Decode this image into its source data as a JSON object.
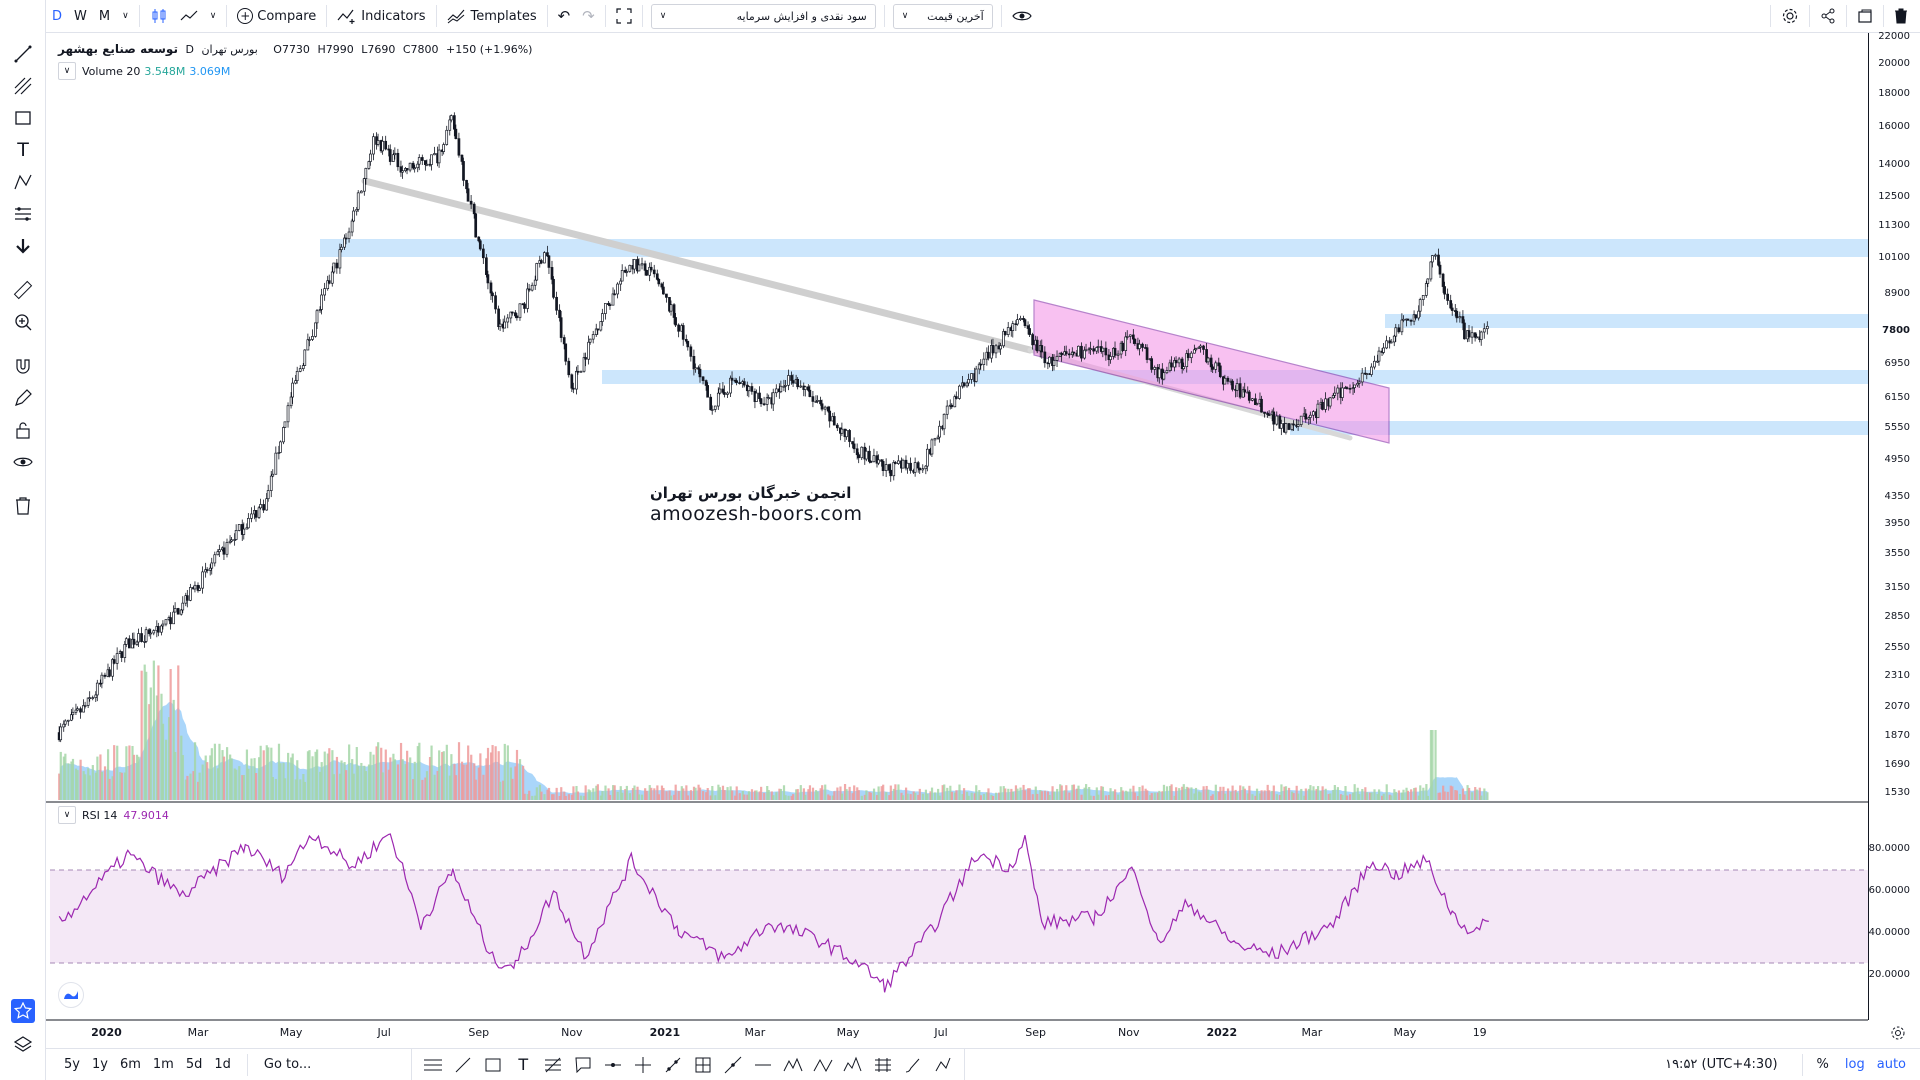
{
  "toolbar": {
    "intervals": [
      "D",
      "W",
      "M"
    ],
    "compare_label": "Compare",
    "indicators_label": "Indicators",
    "templates_label": "Templates",
    "select_strategy": "سود نقدی و افزایش سرمایه",
    "select_price": "آخرین قیمت"
  },
  "legend": {
    "symbol": "توسعه صنایع بهشهر",
    "exchange": "بورس تهران",
    "interval": "D",
    "open": "O7730",
    "high": "H7990",
    "low": "L7690",
    "close": "C7800",
    "change": "+150 (+1.96%)",
    "volume_label": "Volume 20",
    "volume_value1": "3.548M",
    "volume_value2": "3.069M",
    "rsi_label": "RSI 14",
    "rsi_value": "47.9014"
  },
  "watermark": {
    "line1": "انجمن خبرگان   بورس تهران",
    "line2": "amoozesh-boors.com"
  },
  "price_axis": [
    "22000",
    "20000",
    "18000",
    "16000",
    "14000",
    "12500",
    "11300",
    "10100",
    "8900",
    "7800",
    "6950",
    "6150",
    "5550",
    "4950",
    "4350",
    "3950",
    "3550",
    "3150",
    "2850",
    "2550",
    "2310",
    "2070",
    "1870",
    "1690",
    "1530"
  ],
  "rsi_axis": [
    "80.0000",
    "60.0000",
    "40.0000",
    "20.0000"
  ],
  "x_axis": [
    "2020",
    "Mar",
    "May",
    "Jul",
    "Sep",
    "Nov",
    "2021",
    "Mar",
    "May",
    "Jul",
    "Sep",
    "Nov",
    "2022",
    "Mar",
    "May",
    "19"
  ],
  "bottom": {
    "ranges": [
      "5y",
      "1y",
      "6m",
      "1m",
      "5d",
      "1d"
    ],
    "goto": "Go to...",
    "time": "۱۹:۵۲ (UTC+4:30)",
    "percent": "%",
    "log": "log",
    "auto": "auto"
  },
  "colors": {
    "accent": "#2962ff",
    "zone": "#bbdefb",
    "channel": "#f48fe6",
    "rsi_line": "#9c27b0",
    "rsi_band": "#f3e5f5",
    "vol_up": "#a5d6a7",
    "vol_down": "#ef9a9a",
    "vol_ma": "#64b5f6"
  },
  "chart_data": {
    "type": "candlestick",
    "scale": "log",
    "price_path": [
      [
        "2019-12-01",
        1900
      ],
      [
        "2019-12-20",
        2100
      ],
      [
        "2020-01-15",
        2600
      ],
      [
        "2020-02-10",
        2800
      ],
      [
        "2020-03-01",
        3200
      ],
      [
        "2020-03-25",
        3800
      ],
      [
        "2020-04-15",
        4300
      ],
      [
        "2020-05-01",
        6200
      ],
      [
        "2020-05-20",
        8500
      ],
      [
        "2020-06-10",
        11500
      ],
      [
        "2020-06-25",
        15500
      ],
      [
        "2020-07-15",
        13800
      ],
      [
        "2020-08-05",
        14500
      ],
      [
        "2020-08-15",
        16500
      ],
      [
        "2020-09-01",
        10800
      ],
      [
        "2020-09-15",
        7900
      ],
      [
        "2020-10-01",
        8600
      ],
      [
        "2020-10-15",
        10500
      ],
      [
        "2020-11-01",
        6400
      ],
      [
        "2020-11-20",
        8200
      ],
      [
        "2020-12-10",
        10000
      ],
      [
        "2020-12-25",
        9500
      ],
      [
        "2021-01-10",
        8000
      ],
      [
        "2021-02-01",
        6000
      ],
      [
        "2021-02-15",
        6600
      ],
      [
        "2021-03-10",
        6050
      ],
      [
        "2021-03-25",
        6700
      ],
      [
        "2021-04-15",
        5900
      ],
      [
        "2021-05-10",
        5100
      ],
      [
        "2021-05-25",
        4800
      ],
      [
        "2021-06-20",
        4900
      ],
      [
        "2021-07-10",
        6200
      ],
      [
        "2021-07-25",
        6800
      ],
      [
        "2021-08-20",
        8200
      ],
      [
        "2021-09-10",
        7000
      ],
      [
        "2021-10-01",
        7300
      ],
      [
        "2021-10-20",
        7200
      ],
      [
        "2021-11-05",
        7700
      ],
      [
        "2021-11-20",
        6700
      ],
      [
        "2021-12-05",
        7000
      ],
      [
        "2021-12-20",
        7300
      ],
      [
        "2022-01-05",
        6500
      ],
      [
        "2022-01-25",
        6100
      ],
      [
        "2022-02-10",
        5600
      ],
      [
        "2022-03-01",
        5800
      ],
      [
        "2022-03-20",
        6300
      ],
      [
        "2022-04-10",
        6900
      ],
      [
        "2022-04-25",
        7800
      ],
      [
        "2022-05-10",
        8400
      ],
      [
        "2022-05-20",
        10200
      ],
      [
        "2022-06-01",
        8500
      ],
      [
        "2022-06-12",
        7600
      ],
      [
        "2022-06-25",
        7800
      ]
    ],
    "rsi_path": [
      [
        "2019-12-01",
        45
      ],
      [
        "2020-01-15",
        78
      ],
      [
        "2020-02-20",
        58
      ],
      [
        "2020-04-01",
        82
      ],
      [
        "2020-04-25",
        68
      ],
      [
        "2020-05-15",
        88
      ],
      [
        "2020-06-10",
        72
      ],
      [
        "2020-07-05",
        88
      ],
      [
        "2020-07-25",
        45
      ],
      [
        "2020-08-15",
        70
      ],
      [
        "2020-09-10",
        28
      ],
      [
        "2020-09-25",
        25
      ],
      [
        "2020-10-20",
        60
      ],
      [
        "2020-11-10",
        30
      ],
      [
        "2020-12-10",
        75
      ],
      [
        "2021-01-10",
        42
      ],
      [
        "2021-02-10",
        28
      ],
      [
        "2021-03-10",
        45
      ],
      [
        "2021-04-10",
        38
      ],
      [
        "2021-05-10",
        25
      ],
      [
        "2021-05-25",
        15
      ],
      [
        "2021-06-25",
        42
      ],
      [
        "2021-07-25",
        78
      ],
      [
        "2021-08-15",
        72
      ],
      [
        "2021-08-25",
        85
      ],
      [
        "2021-09-05",
        45
      ],
      [
        "2021-10-10",
        48
      ],
      [
        "2021-11-05",
        72
      ],
      [
        "2021-11-20",
        35
      ],
      [
        "2021-12-10",
        55
      ],
      [
        "2022-01-10",
        35
      ],
      [
        "2022-02-05",
        30
      ],
      [
        "2022-02-25",
        38
      ],
      [
        "2022-03-15",
        45
      ],
      [
        "2022-04-10",
        75
      ],
      [
        "2022-04-25",
        68
      ],
      [
        "2022-05-15",
        75
      ],
      [
        "2022-06-01",
        50
      ],
      [
        "2022-06-15",
        40
      ],
      [
        "2022-06-25",
        46
      ]
    ]
  }
}
